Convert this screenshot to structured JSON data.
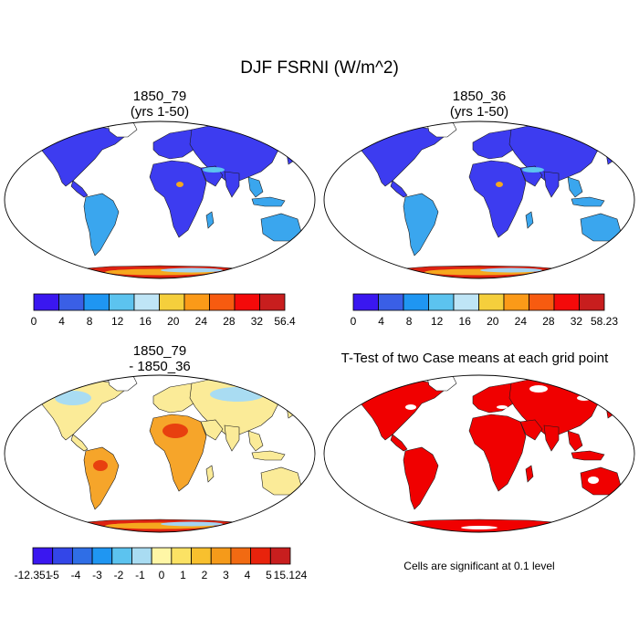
{
  "figure": {
    "title": "DJF FSRNI (W/m^2)"
  },
  "panels": {
    "top_left": {
      "title_line1": "1850_79",
      "title_line2": "(yrs 1-50)"
    },
    "top_right": {
      "title_line1": "1850_36",
      "title_line2": "(yrs 1-50)"
    },
    "bottom_left": {
      "title_line1": "1850_79",
      "title_line2": "- 1850_36"
    },
    "bottom_right": {
      "title_line1": "T-Test of two Case means at each grid point",
      "note": "Cells are significant at 0.1 level"
    }
  },
  "colorbars": {
    "top_left": {
      "labels": [
        "0",
        "4",
        "8",
        "12",
        "16",
        "20",
        "24",
        "28",
        "32",
        "56.4"
      ],
      "colors": [
        "#3a17f0",
        "#3a5fe6",
        "#1f96f2",
        "#5cc3ef",
        "#bfe5f6",
        "#f5cf3c",
        "#fb9a18",
        "#f75b10",
        "#f40a0a",
        "#c81e1e"
      ]
    },
    "top_right": {
      "labels": [
        "0",
        "4",
        "8",
        "12",
        "16",
        "20",
        "24",
        "28",
        "32",
        "58.23"
      ],
      "colors": [
        "#3a17f0",
        "#3a5fe6",
        "#1f96f2",
        "#5cc3ef",
        "#bfe5f6",
        "#f5cf3c",
        "#fb9a18",
        "#f75b10",
        "#f40a0a",
        "#c81e1e"
      ]
    },
    "bottom_left": {
      "labels": [
        "-12.351",
        "-5",
        "-4",
        "-3",
        "-2",
        "-1",
        "0",
        "1",
        "2",
        "3",
        "4",
        "5",
        "15.124"
      ],
      "colors": [
        "#3a17f0",
        "#3346e8",
        "#2f6ee6",
        "#1f96f2",
        "#5cc3ef",
        "#a9dcf2",
        "#fff6a6",
        "#fbe264",
        "#f8c02e",
        "#f59a1a",
        "#f16a12",
        "#e8230c",
        "#c81e1e"
      ]
    }
  },
  "colors": {
    "land_blue": "#3d3cf0",
    "land_light_blue": "#3aa6ee",
    "diff_yellow": "#fbeb98",
    "diff_orange": "#f6a52a",
    "diff_red": "#e8400f",
    "sig_red": "#f00000",
    "antarctic_red": "#dd2211",
    "antarctic_orange": "#f5a81e",
    "antarctic_lightblue": "#a4d4f2"
  }
}
